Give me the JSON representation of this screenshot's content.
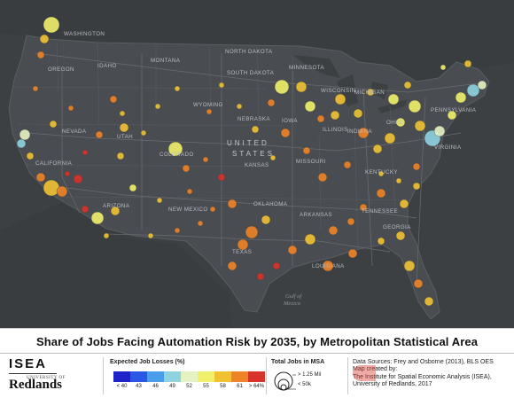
{
  "title": "Share of Jobs Facing Automation Risk by 2035, by Metropolitan Statistical Area",
  "map_labels": {
    "countries": [
      "UNITED",
      "STATES"
    ],
    "states": [
      "WASHINGTON",
      "OREGON",
      "IDAHO",
      "MONTANA",
      "NORTH DAKOTA",
      "SOUTH DAKOTA",
      "MINNESOTA",
      "WISCONSIN",
      "WYOMING",
      "NEVADA",
      "UTAH",
      "COLORADO",
      "NEBRASKA",
      "IOWA",
      "ILLINOIS",
      "INDIANA",
      "OHIO",
      "KANSAS",
      "MISSOURI",
      "KENTUCKY",
      "CALIFORNIA",
      "ARIZONA",
      "NEW MEXICO",
      "OKLAHOMA",
      "ARKANSAS",
      "TENNESSEE",
      "GEORGIA",
      "TEXAS",
      "LOUISIANA",
      "MICHIGAN",
      "PENNSYLVANIA",
      "VIRGINIA"
    ],
    "water": [
      "Gulf of",
      "Mexico"
    ]
  },
  "legend": {
    "expected_title": "Expected Job Losses (%)",
    "ticks": [
      "< 40",
      "43",
      "46",
      "49",
      "52",
      "55",
      "58",
      "61",
      "> 64%"
    ],
    "colors": [
      "#1f24c8",
      "#2b57e6",
      "#4a9de8",
      "#8fd3e0",
      "#e5f2c2",
      "#f1f06a",
      "#f0c232",
      "#ee8427",
      "#d8322a"
    ],
    "total_title": "Total Jobs in MSA",
    "total_large": "> 1.25 Mil",
    "total_small": "< 50k"
  },
  "credits": {
    "line1": "Data Sources: Frey and Osborne (2013), BLS OES",
    "line2": "Map created by:",
    "line3": "The Institute for Spatial Economic Analysis (ISEA),",
    "line4": "University of Redlands, 2017"
  },
  "logo": {
    "isea": "ISEA",
    "university": "Redlands",
    "university_small": "UNIVERSITY OF"
  }
}
